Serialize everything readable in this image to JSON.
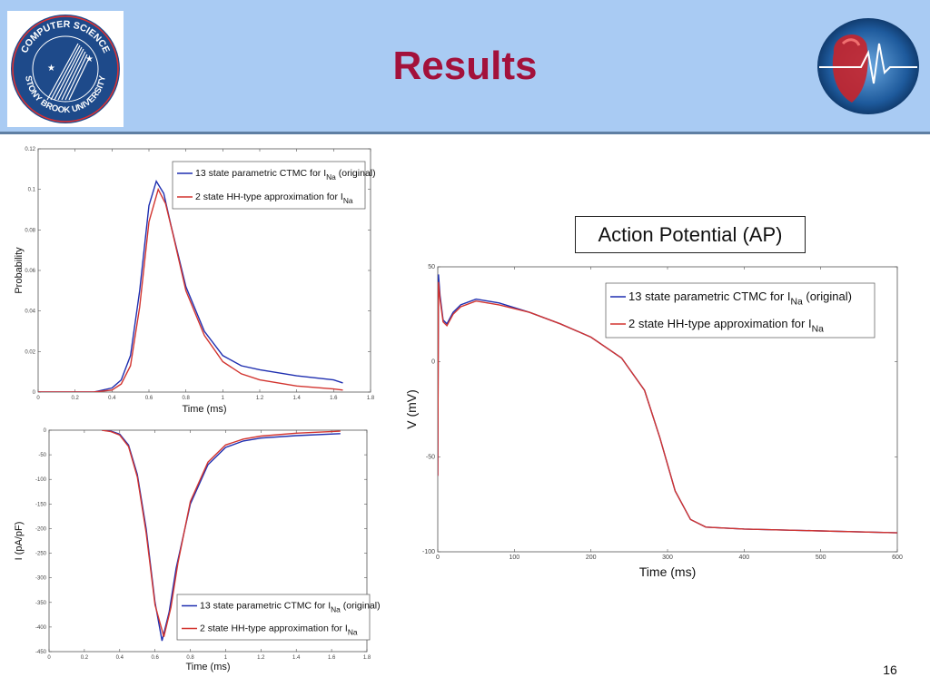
{
  "slide": {
    "title": "Results",
    "page_number": "16",
    "ap_box_label": "Action Potential (AP)",
    "logo_text_top": "COMPUTER SCIENCE",
    "logo_text_bottom": "STONY BROOK UNIVERSITY"
  },
  "colors": {
    "header_bg": "#a9cbf3",
    "title": "#a3113b",
    "series_blue": "#1f2fb0",
    "series_red": "#d2342f"
  },
  "chart_data": [
    {
      "type": "line",
      "xlabel": "Time (ms)",
      "ylabel": "Probability",
      "xlim": [
        0,
        1.8
      ],
      "ylim": [
        0,
        0.12
      ],
      "xticks": [
        0,
        0.2,
        0.4,
        0.6,
        0.8,
        1,
        1.2,
        1.4,
        1.6,
        1.8
      ],
      "yticks": [
        0,
        0.02,
        0.04,
        0.06,
        0.08,
        0.1,
        0.12
      ],
      "legend_position": "top-right",
      "series": [
        {
          "name": "13 state parametric CTMC for INa (original)",
          "name_main": "13 state parametric CTMC for I",
          "name_sub": "Na",
          "name_tail": " (original)",
          "color": "#1f2fb0",
          "x": [
            0,
            0.3,
            0.4,
            0.45,
            0.5,
            0.55,
            0.6,
            0.64,
            0.68,
            0.72,
            0.8,
            0.9,
            1.0,
            1.1,
            1.2,
            1.4,
            1.6,
            1.65
          ],
          "values": [
            0,
            0,
            0.002,
            0.006,
            0.018,
            0.05,
            0.092,
            0.104,
            0.098,
            0.082,
            0.052,
            0.03,
            0.018,
            0.013,
            0.011,
            0.008,
            0.006,
            0.0045
          ]
        },
        {
          "name": "2 state HH-type approximation for INa",
          "name_main": "2 state HH-type approximation for I",
          "name_sub": "Na",
          "name_tail": "",
          "color": "#d2342f",
          "x": [
            0,
            0.3,
            0.4,
            0.45,
            0.5,
            0.55,
            0.6,
            0.65,
            0.69,
            0.73,
            0.8,
            0.9,
            1.0,
            1.1,
            1.2,
            1.4,
            1.6,
            1.65
          ],
          "values": [
            0,
            0,
            0.001,
            0.004,
            0.013,
            0.042,
            0.084,
            0.1,
            0.093,
            0.078,
            0.05,
            0.028,
            0.015,
            0.009,
            0.006,
            0.003,
            0.0015,
            0.001
          ]
        }
      ]
    },
    {
      "type": "line",
      "xlabel": "Time (ms)",
      "ylabel": "I (pA/pF)",
      "xlim": [
        0,
        1.8
      ],
      "ylim": [
        -450,
        0
      ],
      "xticks": [
        0,
        0.2,
        0.4,
        0.6,
        0.8,
        1,
        1.2,
        1.4,
        1.6,
        1.8
      ],
      "yticks": [
        0,
        -50,
        -100,
        -150,
        -200,
        -250,
        -300,
        -350,
        -400,
        -450
      ],
      "legend_position": "bottom-right",
      "series": [
        {
          "name": "13 state parametric CTMC for INa (original)",
          "name_main": "13 state parametric CTMC for I",
          "name_sub": "Na",
          "name_tail": " (original)",
          "color": "#1f2fb0",
          "x": [
            0.3,
            0.35,
            0.4,
            0.45,
            0.5,
            0.55,
            0.6,
            0.64,
            0.68,
            0.72,
            0.8,
            0.9,
            1.0,
            1.1,
            1.2,
            1.4,
            1.65
          ],
          "values": [
            0,
            -2,
            -8,
            -30,
            -90,
            -200,
            -350,
            -428,
            -370,
            -280,
            -150,
            -70,
            -35,
            -22,
            -16,
            -11,
            -7
          ]
        },
        {
          "name": "2 state HH-type approximation for INa",
          "name_main": "2 state HH-type approximation for I",
          "name_sub": "Na",
          "name_tail": "",
          "color": "#d2342f",
          "x": [
            0.3,
            0.35,
            0.4,
            0.45,
            0.5,
            0.55,
            0.6,
            0.65,
            0.69,
            0.73,
            0.8,
            0.9,
            1.0,
            1.1,
            1.2,
            1.4,
            1.65
          ],
          "values": [
            0,
            -3,
            -10,
            -33,
            -95,
            -208,
            -355,
            -420,
            -360,
            -270,
            -145,
            -65,
            -30,
            -18,
            -12,
            -6,
            -2
          ]
        }
      ]
    },
    {
      "type": "line",
      "xlabel": "Time (ms)",
      "ylabel": "V (mV)",
      "xlim": [
        0,
        600
      ],
      "ylim": [
        -100,
        50
      ],
      "xticks": [
        0,
        100,
        200,
        300,
        400,
        500,
        600
      ],
      "yticks": [
        -100,
        -50,
        0,
        50
      ],
      "legend_position": "top-right",
      "series": [
        {
          "name": "13 state parametric CTMC for INa (original)",
          "name_main": "13 state parametric CTMC for I",
          "name_sub": "Na",
          "name_tail": " (original)",
          "color": "#1f2fb0",
          "x": [
            0,
            1,
            3,
            7,
            12,
            20,
            30,
            50,
            80,
            120,
            160,
            200,
            240,
            270,
            290,
            310,
            330,
            350,
            400,
            500,
            600
          ],
          "values": [
            -60,
            46,
            35,
            22,
            20,
            26,
            30,
            33,
            31,
            26,
            20,
            13,
            2,
            -15,
            -40,
            -68,
            -83,
            -87,
            -88,
            -89,
            -90
          ]
        },
        {
          "name": "2 state HH-type approximation for INa",
          "name_main": "2 state HH-type approximation for I",
          "name_sub": "Na",
          "name_tail": "",
          "color": "#d2342f",
          "x": [
            0,
            1,
            3,
            7,
            12,
            20,
            30,
            50,
            80,
            120,
            160,
            200,
            240,
            270,
            290,
            310,
            330,
            350,
            400,
            500,
            600
          ],
          "values": [
            -60,
            42,
            33,
            21,
            19,
            25,
            29,
            32,
            30,
            26,
            20,
            13,
            2,
            -15,
            -40,
            -68,
            -83,
            -87,
            -88,
            -89,
            -90
          ]
        }
      ]
    }
  ]
}
